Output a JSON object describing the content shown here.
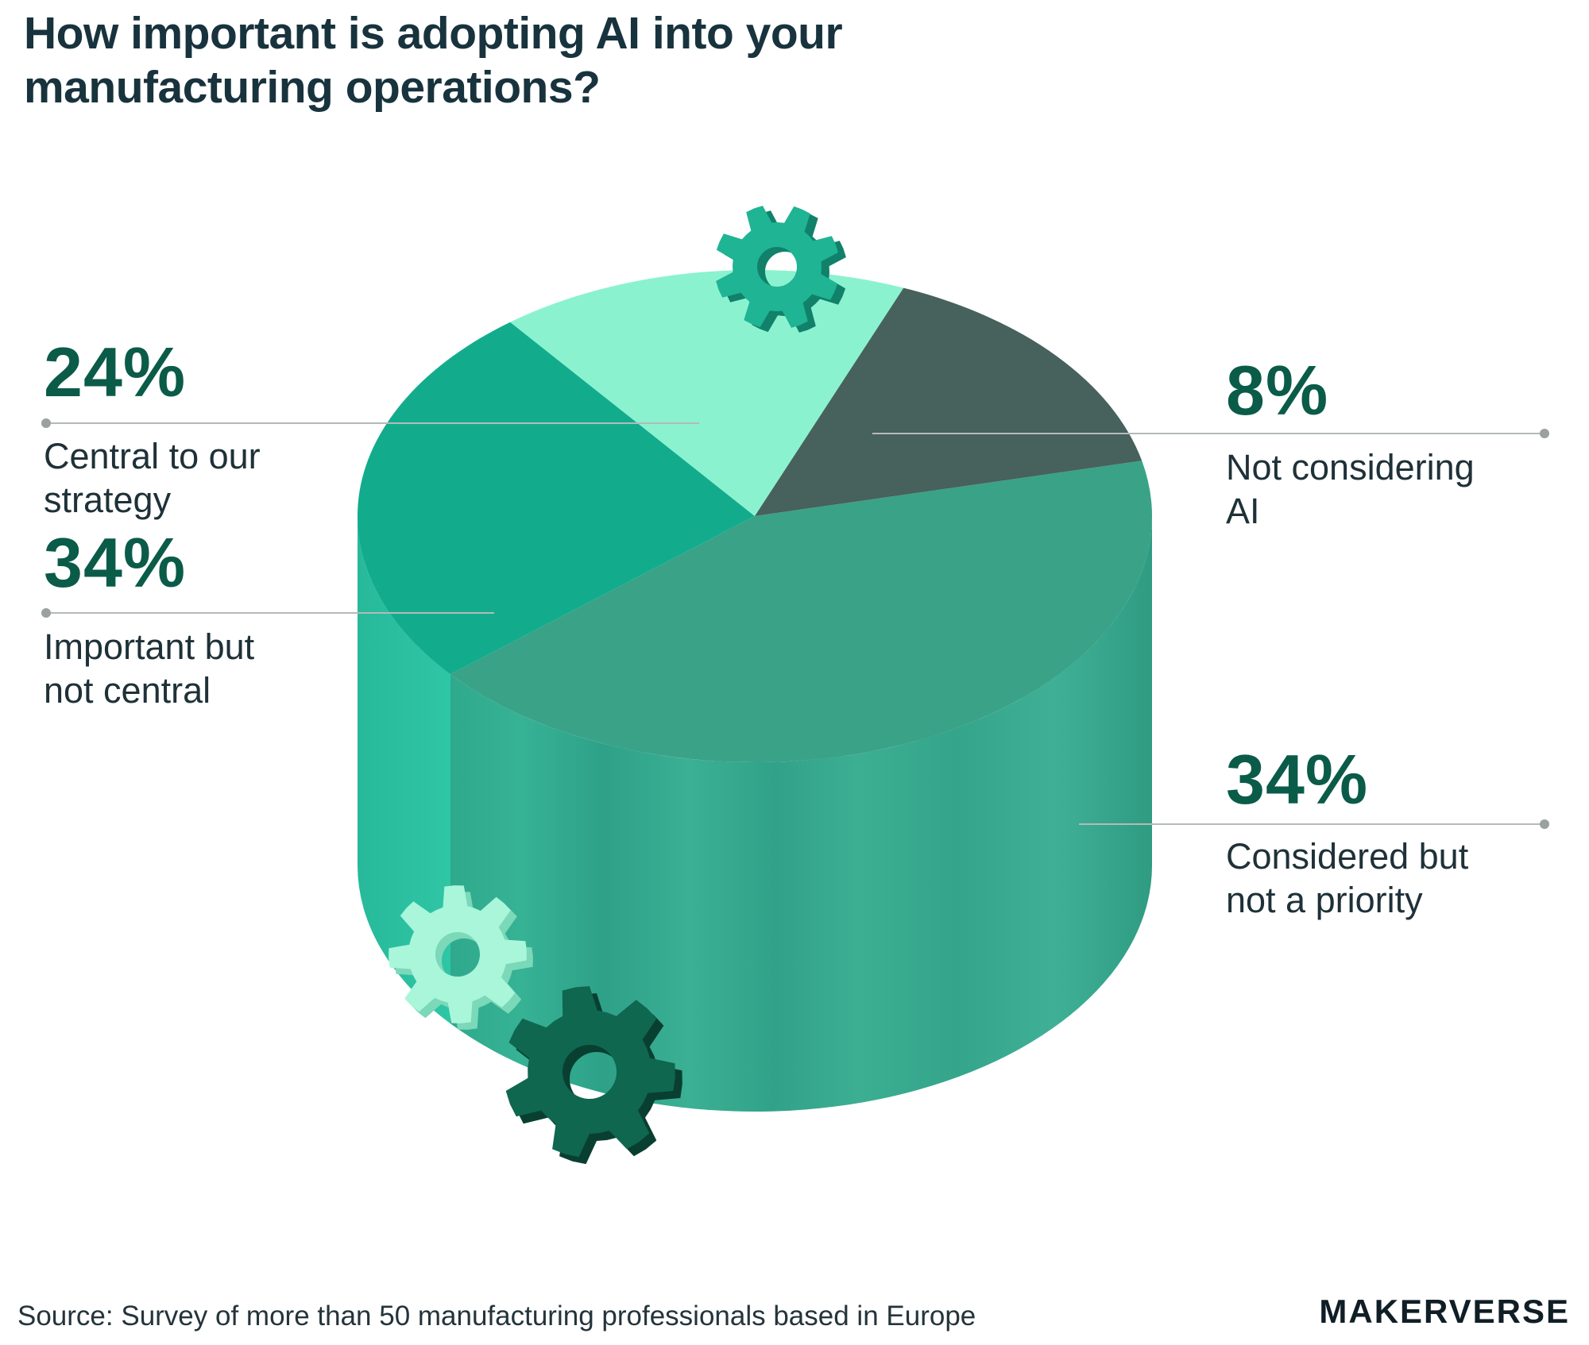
{
  "title": {
    "line1": "How important is adopting AI into your",
    "line2": "manufacturing operations?"
  },
  "callouts": {
    "central": {
      "value": "24%",
      "line1": "Central to our",
      "line2": "strategy"
    },
    "important": {
      "value": "34%",
      "line1": "Important but",
      "line2": "not central"
    },
    "not_considering": {
      "value": "8%",
      "line1": "Not considering",
      "line2": "AI"
    },
    "considered": {
      "value": "34%",
      "line1": "Considered but",
      "line2": "not a priority"
    }
  },
  "footer": {
    "source": "Source: Survey of more than 50 manufacturing professionals based in Europe",
    "brand": "MAKERVERSE"
  },
  "chart_data": {
    "type": "pie",
    "style": "3d-cylinder",
    "title": "How important is adopting AI into your manufacturing operations?",
    "categories": [
      "Central to our strategy",
      "Important but not central",
      "Not considering AI",
      "Considered but not a priority"
    ],
    "values": [
      24,
      34,
      8,
      34
    ],
    "unit": "%",
    "legend_position": "callout-labels",
    "source": "Survey of more than 50 manufacturing professionals based in Europe",
    "colors": {
      "central": "#8BF2CF",
      "important": "#12AC8D",
      "not_considering": "#47615D",
      "considered": "#3AA287",
      "considered_wall": "#3FAE92",
      "important_wall": "#2BBF9F",
      "accent_number": "#0B5B49",
      "label_text": "#1F3138",
      "title_text": "#18333D",
      "leader_line": "#B4BAB9"
    }
  },
  "gears": {
    "top": {
      "body": "#1FB494",
      "shade": "#11816A"
    },
    "mint": {
      "body": "#A9F6DA",
      "shade": "#7BD8B8"
    },
    "dark": {
      "body": "#0F6750",
      "shade": "#093F31"
    }
  }
}
